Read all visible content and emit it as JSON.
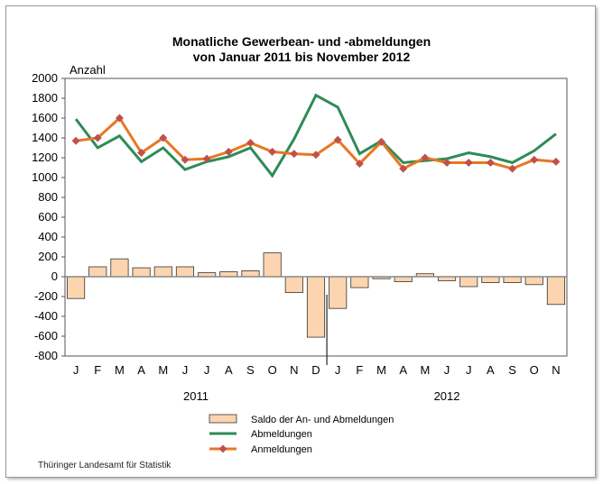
{
  "chart_data": {
    "type": "bar+line",
    "title": "Monatliche Gewerbean- und -abmeldungen",
    "subtitle": "von Januar 2011 bis November 2012",
    "ylabel": "Anzahl",
    "ylim": [
      -800,
      2000
    ],
    "yticks": [
      "2000",
      "1800",
      "1600",
      "1400",
      "1200",
      "1000",
      "800",
      "600",
      "400",
      "200",
      "0",
      "-200",
      "-400",
      "-600",
      "-800"
    ],
    "categories": [
      "J",
      "F",
      "M",
      "A",
      "M",
      "J",
      "J",
      "A",
      "S",
      "O",
      "N",
      "D",
      "J",
      "F",
      "M",
      "A",
      "M",
      "J",
      "J",
      "A",
      "S",
      "O",
      "N"
    ],
    "years": [
      "2011",
      "2012"
    ],
    "series": [
      {
        "name": "Saldo der An- und Abmeldungen",
        "type": "bar",
        "color": "#fcd5b0",
        "values": [
          -220,
          100,
          180,
          90,
          100,
          100,
          40,
          50,
          60,
          240,
          -160,
          -610,
          -320,
          -110,
          -20,
          -50,
          30,
          -40,
          -100,
          -60,
          -60,
          -80,
          -280
        ]
      },
      {
        "name": "Abmeldungen",
        "type": "line",
        "color": "#2e8b57",
        "values": [
          1590,
          1300,
          1420,
          1160,
          1300,
          1080,
          1160,
          1210,
          1300,
          1020,
          1390,
          1830,
          1710,
          1240,
          1370,
          1150,
          1170,
          1190,
          1250,
          1210,
          1150,
          1270,
          1440
        ]
      },
      {
        "name": "Anmeldungen",
        "type": "line",
        "color": "#e87722",
        "marker_color": "#c0504d",
        "values": [
          1370,
          1400,
          1600,
          1250,
          1400,
          1180,
          1190,
          1260,
          1350,
          1260,
          1240,
          1230,
          1380,
          1140,
          1360,
          1090,
          1200,
          1150,
          1150,
          1150,
          1090,
          1180,
          1160
        ]
      }
    ],
    "legend": "bottom",
    "grid": false
  },
  "source": "Thüringer Landesamt für Statistik"
}
